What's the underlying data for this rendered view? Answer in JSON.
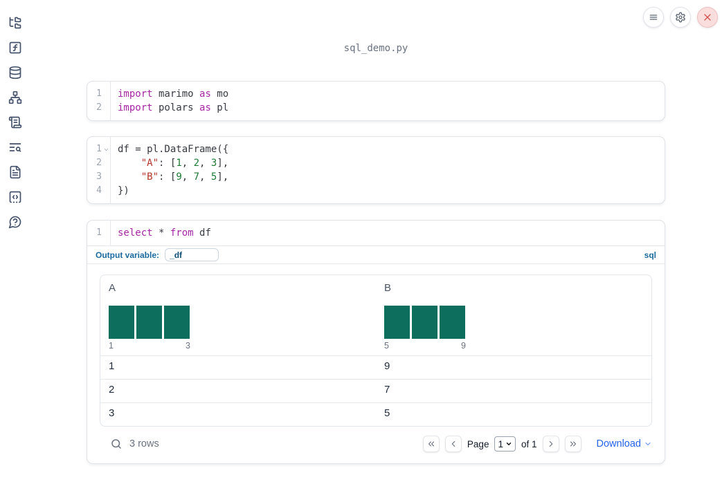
{
  "header": {
    "filename": "sql_demo.py"
  },
  "window": {
    "controls": [
      {
        "id": "menu-button",
        "icon": "menu-icon"
      },
      {
        "id": "settings-button",
        "icon": "gear-icon"
      },
      {
        "id": "shutdown-button",
        "icon": "close-icon"
      }
    ]
  },
  "sidebar": {
    "items": [
      {
        "id": "file-explorer",
        "icon": "folder-tree-icon"
      },
      {
        "id": "variables",
        "icon": "function-square-icon"
      },
      {
        "id": "datasources",
        "icon": "database-icon"
      },
      {
        "id": "dependency-graph",
        "icon": "network-icon"
      },
      {
        "id": "scratchpad",
        "icon": "scroll-text-icon"
      },
      {
        "id": "logs",
        "icon": "text-search-icon"
      },
      {
        "id": "documentation",
        "icon": "file-text-icon"
      },
      {
        "id": "snippets",
        "icon": "code-square-icon"
      },
      {
        "id": "help",
        "icon": "message-question-icon"
      }
    ]
  },
  "cells": [
    {
      "type": "python",
      "lines": [
        {
          "num": "1",
          "tokens": [
            {
              "t": "import",
              "c": "kw"
            },
            {
              "t": " marimo ",
              "c": "pl"
            },
            {
              "t": "as",
              "c": "kw"
            },
            {
              "t": " mo",
              "c": "pl"
            }
          ]
        },
        {
          "num": "2",
          "tokens": [
            {
              "t": "import",
              "c": "kw"
            },
            {
              "t": " polars ",
              "c": "pl"
            },
            {
              "t": "as",
              "c": "kw"
            },
            {
              "t": " pl",
              "c": "pl"
            }
          ]
        }
      ]
    },
    {
      "type": "python",
      "lines": [
        {
          "num": "1",
          "fold": true,
          "tokens": [
            {
              "t": "df = pl.DataFrame({",
              "c": "pl"
            }
          ]
        },
        {
          "num": "2",
          "tokens": [
            {
              "t": "    ",
              "c": "pl"
            },
            {
              "t": "\"A\"",
              "c": "str"
            },
            {
              "t": ": [",
              "c": "pl"
            },
            {
              "t": "1",
              "c": "num"
            },
            {
              "t": ", ",
              "c": "pl"
            },
            {
              "t": "2",
              "c": "num"
            },
            {
              "t": ", ",
              "c": "pl"
            },
            {
              "t": "3",
              "c": "num"
            },
            {
              "t": "],",
              "c": "pl"
            }
          ]
        },
        {
          "num": "3",
          "tokens": [
            {
              "t": "    ",
              "c": "pl"
            },
            {
              "t": "\"B\"",
              "c": "str"
            },
            {
              "t": ": [",
              "c": "pl"
            },
            {
              "t": "9",
              "c": "num"
            },
            {
              "t": ", ",
              "c": "pl"
            },
            {
              "t": "7",
              "c": "num"
            },
            {
              "t": ", ",
              "c": "pl"
            },
            {
              "t": "5",
              "c": "num"
            },
            {
              "t": "],",
              "c": "pl"
            }
          ]
        },
        {
          "num": "4",
          "tokens": [
            {
              "t": "})",
              "c": "pl"
            }
          ]
        }
      ]
    },
    {
      "type": "sql",
      "lines": [
        {
          "num": "1",
          "tokens": [
            {
              "t": "select",
              "c": "kw"
            },
            {
              "t": " * ",
              "c": "pl"
            },
            {
              "t": "from",
              "c": "kw"
            },
            {
              "t": " df",
              "c": "pl"
            }
          ]
        }
      ],
      "footer": {
        "output_variable_label": "Output variable:",
        "output_variable_value": "_df",
        "language_badge": "sql"
      }
    }
  ],
  "table": {
    "columns": [
      {
        "name": "A",
        "histogram": {
          "bars": [
            1,
            1,
            1
          ],
          "min_label": "1",
          "max_label": "3"
        }
      },
      {
        "name": "B",
        "histogram": {
          "bars": [
            1,
            1,
            1
          ],
          "min_label": "5",
          "max_label": "9"
        }
      }
    ],
    "rows": [
      [
        "1",
        "9"
      ],
      [
        "2",
        "7"
      ],
      [
        "3",
        "5"
      ]
    ],
    "footer": {
      "row_count": "3 rows",
      "page_label": "Page",
      "page_value": "1",
      "of_label": "of 1",
      "download_label": "Download"
    }
  },
  "colors": {
    "histogram_bar": "#0e6e5e",
    "keyword": "#a626a4",
    "string": "#b3352c",
    "number": "#1e7a34",
    "sql_accent_blue": "#1b6a9d",
    "link_blue": "#2563eb",
    "close_red": "#d4524e"
  }
}
